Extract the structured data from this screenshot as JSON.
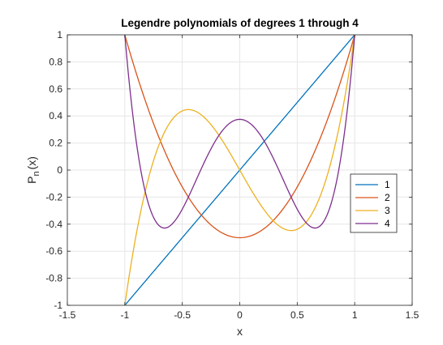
{
  "chart_data": {
    "type": "line",
    "title": "Legendre polynomials of degrees 1 through 4",
    "xlabel": "x",
    "ylabel": "P",
    "ylabel_sub": "n",
    "ylabel_suffix": "(x)",
    "xlim": [
      -1.5,
      1.5
    ],
    "ylim": [
      -1,
      1
    ],
    "xticks": [
      -1.5,
      -1,
      -0.5,
      0,
      0.5,
      1,
      1.5
    ],
    "xtick_labels": [
      "-1.5",
      "-1",
      "-0.5",
      "0",
      "0.5",
      "1",
      "1.5"
    ],
    "yticks": [
      -1,
      -0.8,
      -0.6,
      -0.4,
      -0.2,
      0,
      0.2,
      0.4,
      0.6,
      0.8,
      1
    ],
    "ytick_labels": [
      "-1",
      "-0.8",
      "-0.6",
      "-0.4",
      "-0.2",
      "0",
      "0.2",
      "0.4",
      "0.6",
      "0.8",
      "1"
    ],
    "grid": true,
    "legend_position": "right",
    "x": [
      -1,
      -0.9,
      -0.8,
      -0.7,
      -0.6,
      -0.5,
      -0.4,
      -0.3,
      -0.2,
      -0.1,
      0,
      0.1,
      0.2,
      0.3,
      0.4,
      0.5,
      0.6,
      0.7,
      0.8,
      0.9,
      1
    ],
    "series": [
      {
        "name": "1",
        "color": "#0072BD",
        "values": [
          -1,
          -0.9,
          -0.8,
          -0.7,
          -0.6,
          -0.5,
          -0.4,
          -0.3,
          -0.2,
          -0.1,
          0,
          0.1,
          0.2,
          0.3,
          0.4,
          0.5,
          0.6,
          0.7,
          0.8,
          0.9,
          1
        ]
      },
      {
        "name": "2",
        "color": "#D95319",
        "values": [
          1,
          0.715,
          0.46,
          0.235,
          0.04,
          -0.125,
          -0.26,
          -0.365,
          -0.44,
          -0.485,
          -0.5,
          -0.485,
          -0.44,
          -0.365,
          -0.26,
          -0.125,
          0.04,
          0.235,
          0.46,
          0.715,
          1
        ]
      },
      {
        "name": "3",
        "color": "#EDB120",
        "values": [
          -1,
          -0.4725,
          -0.08,
          0.1925,
          0.36,
          0.4375,
          0.44,
          0.3825,
          0.28,
          0.1475,
          0,
          -0.1475,
          -0.28,
          -0.3825,
          -0.44,
          -0.4375,
          -0.36,
          -0.1925,
          0.08,
          0.4725,
          1
        ]
      },
      {
        "name": "4",
        "color": "#7E2F8E",
        "values": [
          1,
          0.2079,
          -0.233,
          -0.4121,
          -0.408,
          -0.2891,
          -0.113,
          0.0729,
          0.232,
          0.3379,
          0.375,
          0.3379,
          0.232,
          0.0729,
          -0.113,
          -0.2891,
          -0.408,
          -0.4121,
          -0.233,
          0.2079,
          1
        ]
      }
    ]
  }
}
